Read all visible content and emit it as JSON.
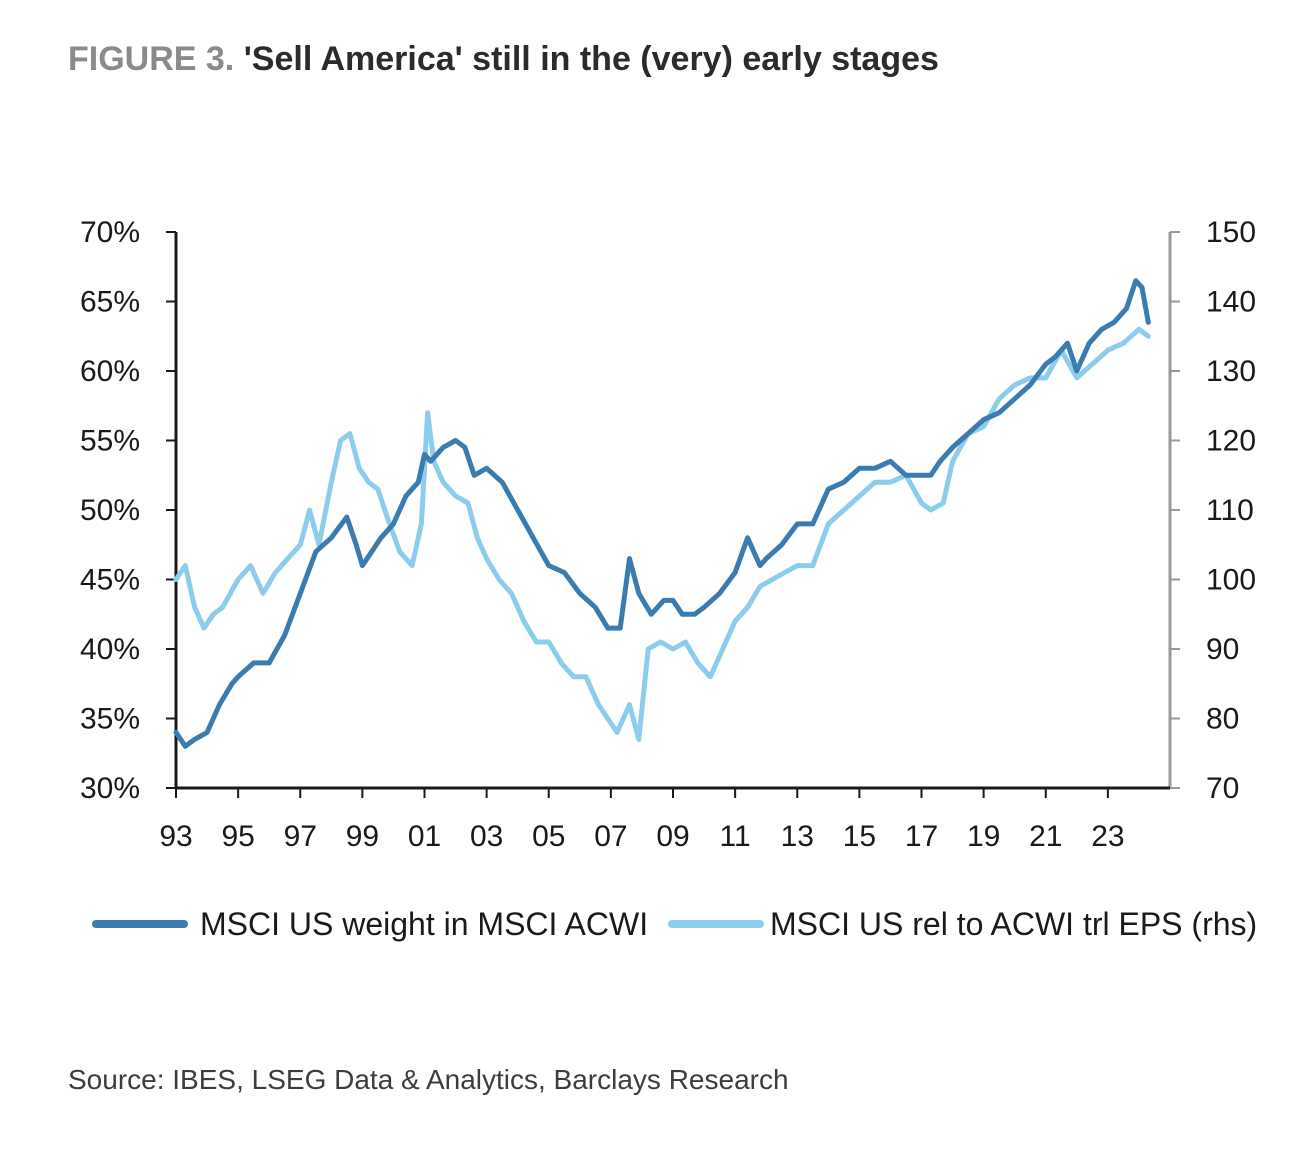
{
  "figure": {
    "label": "FIGURE 3.",
    "title": "'Sell America' still in the (very) early stages",
    "source": "Source: IBES, LSEG Data & Analytics, Barclays Research"
  },
  "colors": {
    "series_dark": "#3b7cb0",
    "series_light": "#8ccdee",
    "axis": "#1a1a1a",
    "right_axis": "#9a9a9a"
  },
  "chart_data": {
    "type": "line",
    "grid": false,
    "legend_position": "bottom",
    "x_ticks": [
      "93",
      "95",
      "97",
      "99",
      "01",
      "03",
      "05",
      "07",
      "09",
      "11",
      "13",
      "15",
      "17",
      "19",
      "21",
      "23"
    ],
    "x_tick_values": [
      1993,
      1995,
      1997,
      1999,
      2001,
      2003,
      2005,
      2007,
      2009,
      2011,
      2013,
      2015,
      2017,
      2019,
      2021,
      2023
    ],
    "xlim": [
      1993,
      2025
    ],
    "y_left": {
      "ticks": [
        "30%",
        "35%",
        "40%",
        "45%",
        "50%",
        "55%",
        "60%",
        "65%",
        "70%"
      ],
      "lim": [
        30,
        70
      ]
    },
    "y_right": {
      "ticks": [
        "70",
        "80",
        "90",
        "100",
        "110",
        "120",
        "130",
        "140",
        "150"
      ],
      "lim": [
        70,
        150
      ]
    },
    "series": [
      {
        "name": "MSCI US weight in MSCI ACWI",
        "axis": "left",
        "color": "#3b7cb0",
        "x": [
          1993,
          1993.3,
          1993.6,
          1994,
          1994.4,
          1994.8,
          1995,
          1995.5,
          1996,
          1996.5,
          1997,
          1997.5,
          1998,
          1998.5,
          1998.8,
          1999,
          1999.3,
          1999.6,
          2000,
          2000.4,
          2000.8,
          2001,
          2001.2,
          2001.6,
          2002,
          2002.3,
          2002.6,
          2003,
          2003.5,
          2004,
          2004.5,
          2005,
          2005.5,
          2006,
          2006.5,
          2006.9,
          2007.3,
          2007.6,
          2007.9,
          2008.3,
          2008.7,
          2009,
          2009.3,
          2009.7,
          2010,
          2010.5,
          2011,
          2011.4,
          2011.8,
          2012,
          2012.5,
          2013,
          2013.5,
          2014,
          2014.5,
          2015,
          2015.5,
          2016,
          2016.5,
          2017,
          2017.3,
          2017.6,
          2018,
          2018.5,
          2019,
          2019.5,
          2020,
          2020.5,
          2021,
          2021.3,
          2021.7,
          2022,
          2022.4,
          2022.8,
          2023.2,
          2023.6,
          2023.9,
          2024.1,
          2024.3
        ],
        "y": [
          34,
          33,
          33.5,
          34,
          36,
          37.5,
          38,
          39,
          39,
          41,
          44,
          47,
          48,
          49.5,
          47.5,
          46,
          47,
          48,
          49,
          51,
          52,
          54,
          53.5,
          54.5,
          55,
          54.5,
          52.5,
          53,
          52,
          50,
          48,
          46,
          45.5,
          44,
          43,
          41.5,
          41.5,
          46.5,
          44,
          42.5,
          43.5,
          43.5,
          42.5,
          42.5,
          43,
          44,
          45.5,
          48,
          46,
          46.5,
          47.5,
          49,
          49,
          51.5,
          52,
          53,
          53,
          53.5,
          52.5,
          52.5,
          52.5,
          53.5,
          54.5,
          55.5,
          56.5,
          57,
          58,
          59,
          60.5,
          61,
          62,
          60,
          62,
          63,
          63.5,
          64.5,
          66.5,
          66,
          63.5
        ]
      },
      {
        "name": "MSCI US rel to ACWI trl EPS (rhs)",
        "axis": "right",
        "color": "#8ccdee",
        "x": [
          1993,
          1993.3,
          1993.6,
          1993.9,
          1994.2,
          1994.5,
          1995,
          1995.4,
          1995.8,
          1996.2,
          1996.6,
          1997,
          1997.3,
          1997.6,
          1998,
          1998.3,
          1998.6,
          1998.9,
          1999.2,
          1999.5,
          1999.8,
          2000.2,
          2000.6,
          2000.9,
          2001.1,
          2001.3,
          2001.6,
          2002,
          2002.4,
          2002.7,
          2003,
          2003.4,
          2003.8,
          2004.2,
          2004.6,
          2005,
          2005.4,
          2005.8,
          2006.2,
          2006.6,
          2006.9,
          2007.2,
          2007.6,
          2007.9,
          2008.2,
          2008.6,
          2009,
          2009.4,
          2009.8,
          2010.2,
          2010.6,
          2011,
          2011.4,
          2011.8,
          2012.2,
          2012.6,
          2013,
          2013.5,
          2014,
          2014.5,
          2015,
          2015.5,
          2016,
          2016.5,
          2017,
          2017.3,
          2017.7,
          2018,
          2018.5,
          2019,
          2019.5,
          2020,
          2020.5,
          2021,
          2021.5,
          2022,
          2022.5,
          2023,
          2023.5,
          2024,
          2024.3
        ],
        "y": [
          100,
          102,
          96,
          93,
          95,
          96,
          100,
          102,
          98,
          101,
          103,
          105,
          110,
          105,
          114,
          120,
          121,
          116,
          114,
          113,
          109,
          104,
          102,
          108,
          124,
          117,
          114,
          112,
          111,
          106,
          103,
          100,
          98,
          94,
          91,
          91,
          88,
          86,
          86,
          82,
          80,
          78,
          82,
          77,
          90,
          91,
          90,
          91,
          88,
          86,
          90,
          94,
          96,
          99,
          100,
          101,
          102,
          102,
          108,
          110,
          112,
          114,
          114,
          115,
          111,
          110,
          111,
          117,
          121,
          122,
          126,
          128,
          129,
          129,
          133,
          129,
          131,
          133,
          134,
          136,
          135
        ]
      }
    ]
  }
}
